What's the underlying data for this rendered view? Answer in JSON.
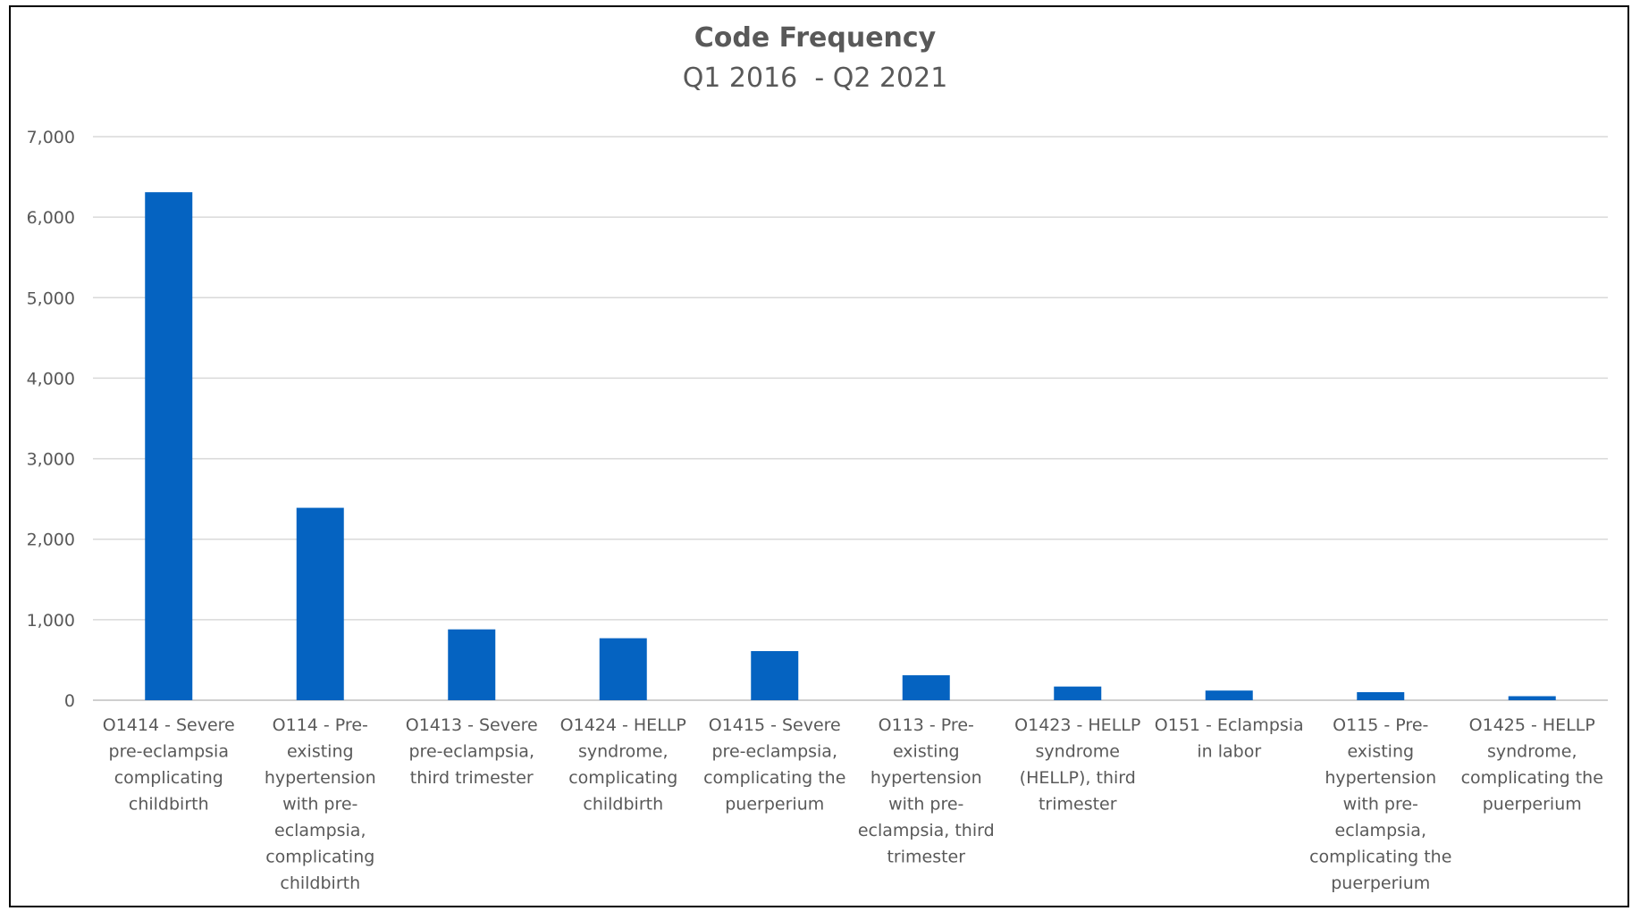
{
  "chart_data": {
    "type": "bar",
    "title": "Code Frequency",
    "subtitle": "Q1 2016  - Q2 2021",
    "categories": [
      [
        "O1414 - Severe",
        "pre-eclampsia",
        "complicating",
        "childbirth"
      ],
      [
        "O114 - Pre-",
        "existing",
        "hypertension",
        "with pre-",
        "eclampsia,",
        "complicating",
        "childbirth"
      ],
      [
        "O1413 - Severe",
        "pre-eclampsia,",
        "third trimester"
      ],
      [
        "O1424 - HELLP",
        "syndrome,",
        "complicating",
        "childbirth"
      ],
      [
        "O1415 - Severe",
        "pre-eclampsia,",
        "complicating the",
        "puerperium"
      ],
      [
        "O113 - Pre-",
        "existing",
        "hypertension",
        "with pre-",
        "eclampsia, third",
        "trimester"
      ],
      [
        "O1423 - HELLP",
        "syndrome",
        "(HELLP), third",
        "trimester"
      ],
      [
        "O151 - Eclampsia",
        "in labor"
      ],
      [
        "O115 - Pre-",
        "existing",
        "hypertension",
        "with pre-",
        "eclampsia,",
        "complicating the",
        "puerperium"
      ],
      [
        "O1425 - HELLP",
        "syndrome,",
        "complicating the",
        "puerperium"
      ]
    ],
    "values": [
      6310,
      2390,
      880,
      770,
      610,
      310,
      170,
      120,
      100,
      50
    ],
    "ylim": [
      0,
      7000
    ],
    "yticks": [
      0,
      1000,
      2000,
      3000,
      4000,
      5000,
      6000,
      7000
    ],
    "ytick_labels": [
      "0",
      "1,000",
      "2,000",
      "3,000",
      "4,000",
      "5,000",
      "6,000",
      "7,000"
    ],
    "grid": true,
    "legend": "none",
    "bar_color": "#0563c1"
  }
}
